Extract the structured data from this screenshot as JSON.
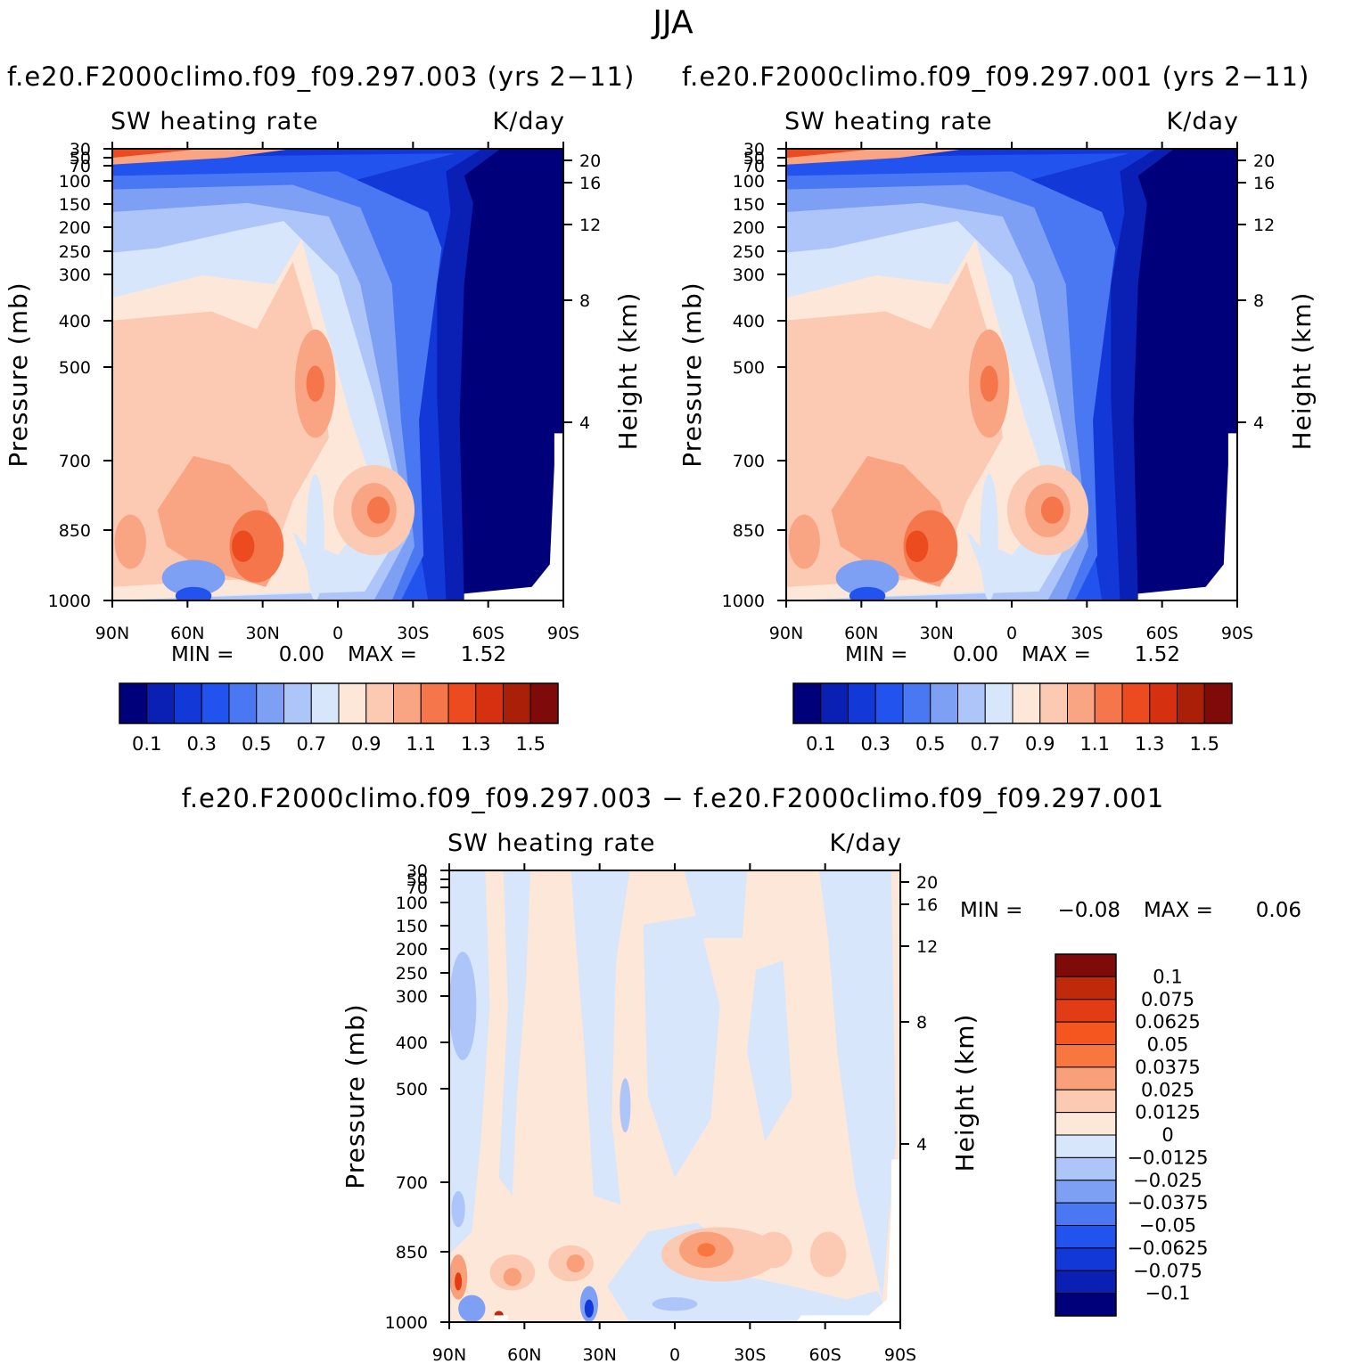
{
  "page_title": "JJA",
  "panels": [
    {
      "id": "run-003",
      "title": "f.e20.F2000climo.f09_f09.297.003 (yrs 2−11)",
      "left_label": "SW heating rate",
      "right_label": "K/day",
      "minmax": {
        "min_label": "MIN =",
        "min_value": "0.00",
        "max_label": "MAX =",
        "max_value": "1.52"
      }
    },
    {
      "id": "run-001",
      "title": "f.e20.F2000climo.f09_f09.297.001 (yrs 2−11)",
      "left_label": "SW heating rate",
      "right_label": "K/day",
      "minmax": {
        "min_label": "MIN =",
        "min_value": "0.00",
        "max_label": "MAX =",
        "max_value": "1.52"
      }
    },
    {
      "id": "difference",
      "title": "f.e20.F2000climo.f09_f09.297.003 − f.e20.F2000climo.f09_f09.297.001",
      "left_label": "SW heating rate",
      "right_label": "K/day",
      "minmax": {
        "min_label": "MIN =",
        "min_value": "−0.08",
        "max_label": "MAX =",
        "max_value": "0.06"
      }
    }
  ],
  "chart_data": [
    {
      "type": "heatmap",
      "title": "f.e20.F2000climo.f09_f09.297.003 (yrs 2−11)",
      "variable": "SW heating rate",
      "units": "K/day",
      "xlabel": "",
      "ylabel": "Pressure (mb)",
      "y2label": "Height (km)",
      "x_ticks": [
        "90N",
        "60N",
        "30N",
        "0",
        "30S",
        "60S",
        "90S"
      ],
      "x_values": [
        90,
        60,
        30,
        0,
        -30,
        -60,
        -90
      ],
      "y_ticks": [
        30,
        50,
        70,
        100,
        150,
        200,
        250,
        300,
        400,
        500,
        700,
        850,
        1000
      ],
      "y2_ticks": [
        20,
        16,
        12,
        8,
        4
      ],
      "ylim": [
        30,
        1000
      ],
      "min": 0.0,
      "max": 1.52,
      "contour_levels": [
        0.1,
        0.2,
        0.3,
        0.4,
        0.5,
        0.6,
        0.7,
        0.8,
        0.9,
        1.0,
        1.1,
        1.2,
        1.3,
        1.4,
        1.5
      ],
      "colorbar_labels": [
        "0.1",
        "0.3",
        "0.5",
        "0.7",
        "0.9",
        "1.1",
        "1.3",
        "1.5"
      ],
      "colors": [
        "#00007a",
        "#0a1fb4",
        "#1238d8",
        "#2353ef",
        "#4a78f2",
        "#7d9ff4",
        "#adc5f8",
        "#d8e6fb",
        "#fde7d8",
        "#fccab2",
        "#f9a583",
        "#f6764b",
        "#ec4a1f",
        "#d53010",
        "#aa1f08",
        "#7e0a0a"
      ]
    },
    {
      "type": "heatmap",
      "title": "f.e20.F2000climo.f09_f09.297.001 (yrs 2−11)",
      "variable": "SW heating rate",
      "units": "K/day",
      "xlabel": "",
      "ylabel": "Pressure (mb)",
      "y2label": "Height (km)",
      "x_ticks": [
        "90N",
        "60N",
        "30N",
        "0",
        "30S",
        "60S",
        "90S"
      ],
      "x_values": [
        90,
        60,
        30,
        0,
        -30,
        -60,
        -90
      ],
      "y_ticks": [
        30,
        50,
        70,
        100,
        150,
        200,
        250,
        300,
        400,
        500,
        700,
        850,
        1000
      ],
      "y2_ticks": [
        20,
        16,
        12,
        8,
        4
      ],
      "ylim": [
        30,
        1000
      ],
      "min": 0.0,
      "max": 1.52,
      "contour_levels": [
        0.1,
        0.2,
        0.3,
        0.4,
        0.5,
        0.6,
        0.7,
        0.8,
        0.9,
        1.0,
        1.1,
        1.2,
        1.3,
        1.4,
        1.5
      ],
      "colorbar_labels": [
        "0.1",
        "0.3",
        "0.5",
        "0.7",
        "0.9",
        "1.1",
        "1.3",
        "1.5"
      ],
      "colors": [
        "#00007a",
        "#0a1fb4",
        "#1238d8",
        "#2353ef",
        "#4a78f2",
        "#7d9ff4",
        "#adc5f8",
        "#d8e6fb",
        "#fde7d8",
        "#fccab2",
        "#f9a583",
        "#f6764b",
        "#ec4a1f",
        "#d53010",
        "#aa1f08",
        "#7e0a0a"
      ]
    },
    {
      "type": "heatmap",
      "title": "f.e20.F2000climo.f09_f09.297.003 − f.e20.F2000climo.f09_f09.297.001",
      "variable": "SW heating rate",
      "units": "K/day",
      "xlabel": "",
      "ylabel": "Pressure (mb)",
      "y2label": "Height (km)",
      "x_ticks": [
        "90N",
        "60N",
        "30N",
        "0",
        "30S",
        "60S",
        "90S"
      ],
      "x_values": [
        90,
        60,
        30,
        0,
        -30,
        -60,
        -90
      ],
      "y_ticks": [
        30,
        50,
        70,
        100,
        150,
        200,
        250,
        300,
        400,
        500,
        700,
        850,
        1000
      ],
      "y2_ticks": [
        20,
        16,
        12,
        8,
        4
      ],
      "ylim": [
        30,
        1000
      ],
      "min": -0.08,
      "max": 0.06,
      "contour_levels": [
        -0.1,
        -0.075,
        -0.0625,
        -0.05,
        -0.0375,
        -0.025,
        -0.0125,
        0,
        0.0125,
        0.025,
        0.0375,
        0.05,
        0.0625,
        0.075,
        0.1
      ],
      "colorbar_labels": [
        "0.1",
        "0.075",
        "0.0625",
        "0.05",
        "0.0375",
        "0.025",
        "0.0125",
        "0",
        "−0.0125",
        "−0.025",
        "−0.0375",
        "−0.05",
        "−0.0625",
        "−0.075",
        "−0.1"
      ],
      "colors": [
        "#7e0a0a",
        "#c02a0a",
        "#e23c16",
        "#f5561f",
        "#f7773f",
        "#f9a07a",
        "#fccab2",
        "#fde7d8",
        "#d8e6fb",
        "#adc5f8",
        "#7d9ff4",
        "#4a78f2",
        "#2353ef",
        "#1238d8",
        "#0a1fb4",
        "#00007a"
      ]
    }
  ]
}
